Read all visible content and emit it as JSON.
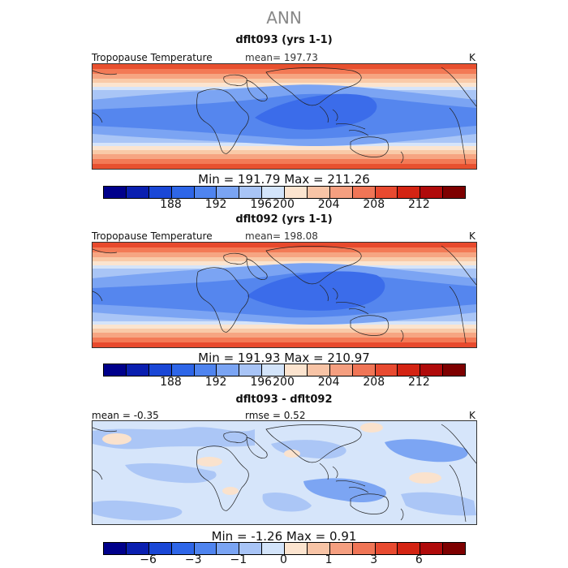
{
  "title": "ANN",
  "colorbar_colors": [
    "#00008b",
    "#0a1fb0",
    "#1a47d6",
    "#2e66e8",
    "#4f84ef",
    "#7aa4f3",
    "#a8c4f6",
    "#d3e4fa",
    "#fce4cf",
    "#f8c4a6",
    "#f59f80",
    "#f07556",
    "#e84a30",
    "#d42413",
    "#b00b0b",
    "#7e0000"
  ],
  "panels": [
    {
      "title": "dflt093 (yrs 1-1)",
      "left_label": "Tropopause Temperature",
      "center_label": "mean= 197.73",
      "units": "K",
      "min_label": "Min",
      "min_value": "191.79",
      "max_label": "Max",
      "max_value": "211.26",
      "colorbar_ticks": [
        "188",
        "192",
        "196",
        "200",
        "204",
        "208",
        "212"
      ]
    },
    {
      "title": "dflt092 (yrs 1-1)",
      "left_label": "Tropopause Temperature",
      "center_label": "mean= 198.08",
      "units": "K",
      "min_label": "Min",
      "min_value": "191.93",
      "max_label": "Max",
      "max_value": "210.97",
      "colorbar_ticks": [
        "188",
        "192",
        "196",
        "200",
        "204",
        "208",
        "212"
      ]
    },
    {
      "title": "dflt093 - dflt092",
      "left_label": "mean =  -0.35",
      "center_label": "rmse =    0.52",
      "units": "K",
      "min_label": "Min",
      "min_value": "-1.26",
      "max_label": "Max",
      "max_value": "0.91",
      "colorbar_ticks": [
        "−6",
        "−3",
        "−1",
        "0",
        "1",
        "3",
        "6"
      ]
    }
  ]
}
